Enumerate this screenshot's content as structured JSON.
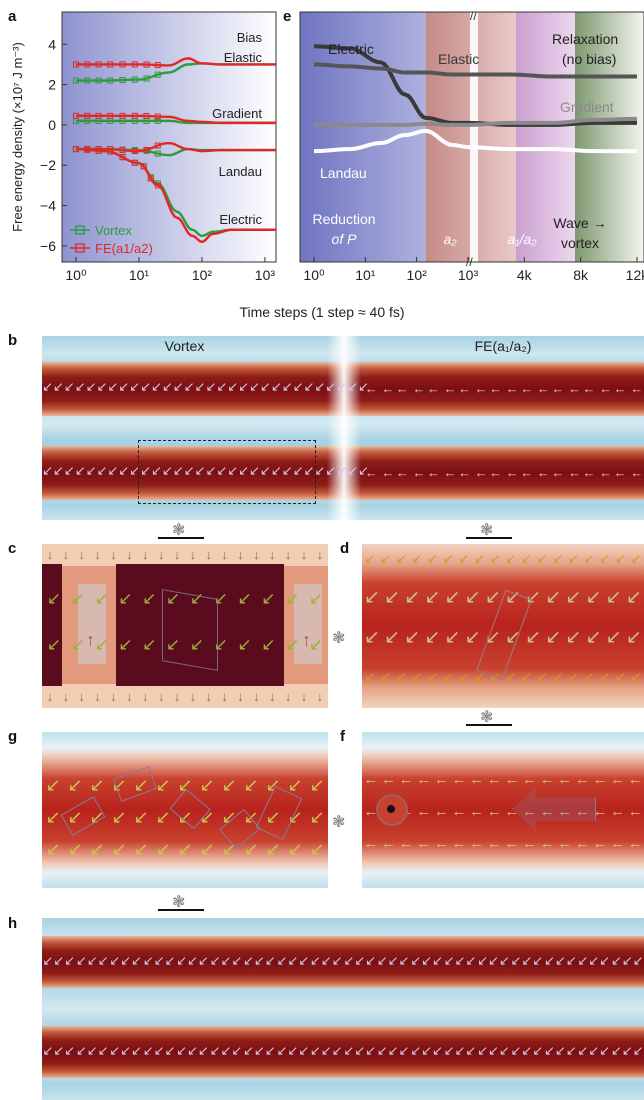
{
  "panel_labels": {
    "a": "a",
    "b": "b",
    "c": "c",
    "d": "d",
    "e": "e",
    "f": "f",
    "g": "g",
    "h": "h"
  },
  "axes": {
    "ylabel_a": "Free energy density (×10⁷ J m⁻³)",
    "xlabel_shared": "Time steps (1 step ≈ 40 fs)",
    "a_yticks": [
      "4",
      "2",
      "0",
      "−2",
      "−4",
      "−6"
    ],
    "a_xticks": [
      "10⁰",
      "10¹",
      "10²",
      "10³"
    ],
    "e_xticks": [
      "10⁰",
      "10¹",
      "10²",
      "10³",
      "4k",
      "8k",
      "12k"
    ]
  },
  "chart_data": [
    {
      "type": "line",
      "panel": "a",
      "xscale": "log",
      "xlim": [
        0.6,
        1500
      ],
      "ylim": [
        -6.8,
        5.6
      ],
      "annotations": [
        "Bias",
        "Elastic",
        "Gradient",
        "Landau",
        "Electric"
      ],
      "legend": [
        "Vortex",
        "FE(a1/a2)"
      ],
      "legend_placement": "bottom-left",
      "series": [
        {
          "name": "Vortex",
          "component": "Elastic",
          "color": "#2e9a3a",
          "x": [
            1,
            3,
            10,
            30,
            60,
            100,
            200,
            1000,
            1500
          ],
          "y": [
            2.2,
            2.2,
            2.25,
            2.6,
            3.0,
            3.05,
            3.0,
            3.0,
            3.0
          ]
        },
        {
          "name": "FE(a1/a2)",
          "component": "Elastic",
          "color": "#e02828",
          "x": [
            1,
            3,
            10,
            30,
            60,
            100,
            200,
            1000,
            1500
          ],
          "y": [
            3.0,
            3.0,
            3.0,
            2.95,
            3.3,
            3.05,
            3.0,
            3.0,
            3.0
          ]
        },
        {
          "name": "Vortex",
          "component": "Gradient",
          "color": "#2e9a3a",
          "x": [
            1,
            3,
            10,
            30,
            60,
            100,
            200,
            1000,
            1500
          ],
          "y": [
            0.2,
            0.2,
            0.2,
            0.2,
            0.1,
            0.1,
            0.1,
            0.1,
            0.1
          ]
        },
        {
          "name": "FE(a1/a2)",
          "component": "Gradient",
          "color": "#e02828",
          "x": [
            1,
            3,
            10,
            30,
            60,
            100,
            200,
            1000,
            1500
          ],
          "y": [
            0.45,
            0.45,
            0.45,
            0.4,
            0.2,
            0.15,
            0.1,
            0.1,
            0.1
          ]
        },
        {
          "name": "Vortex",
          "component": "Landau",
          "color": "#2e9a3a",
          "x": [
            1,
            3,
            10,
            30,
            60,
            100,
            200,
            1000,
            1500
          ],
          "y": [
            -1.2,
            -1.2,
            -1.25,
            -1.5,
            -1.2,
            -1.25,
            -1.25,
            -1.25,
            -1.25
          ]
        },
        {
          "name": "FE(a1/a2)",
          "component": "Landau",
          "color": "#e02828",
          "x": [
            1,
            3,
            10,
            30,
            60,
            100,
            200,
            1000,
            1500
          ],
          "y": [
            -1.2,
            -1.2,
            -1.3,
            -0.9,
            -1.2,
            -1.3,
            -1.25,
            -1.25,
            -1.25
          ]
        },
        {
          "name": "Vortex",
          "component": "Electric",
          "color": "#2e9a3a",
          "x": [
            1,
            3,
            10,
            20,
            40,
            70,
            100,
            150,
            300,
            1000,
            1500
          ],
          "y": [
            -1.2,
            -1.3,
            -1.9,
            -2.9,
            -4.3,
            -5.2,
            -5.5,
            -5.3,
            -5.2,
            -5.2,
            -5.2
          ]
        },
        {
          "name": "FE(a1/a2)",
          "component": "Electric",
          "color": "#e02828",
          "x": [
            1,
            3,
            10,
            20,
            40,
            70,
            100,
            150,
            300,
            1000,
            1500
          ],
          "y": [
            -1.2,
            -1.3,
            -1.9,
            -3.0,
            -4.6,
            -5.5,
            -5.8,
            -5.4,
            -5.2,
            -5.2,
            -5.2
          ]
        }
      ]
    },
    {
      "type": "line",
      "panel": "e",
      "stages": [
        {
          "label_lines": [
            "Reduction",
            "of P"
          ],
          "color": "#7a7fc6"
        },
        {
          "label_lines": [
            "a₂"
          ],
          "color": "#c98a86"
        },
        {
          "label_lines": [
            "a₁/a₂"
          ],
          "color": "#d6a7d8"
        },
        {
          "label_lines": [
            "Wave →",
            "vortex"
          ],
          "color": "#8ea47e"
        }
      ],
      "annotations": {
        "Electric": "Electric",
        "Elastic": "Elastic",
        "Relaxation": "Relaxation",
        "NoBias": "(no bias)",
        "Gradient": "Gradient",
        "Landau": "Landau"
      },
      "note": "x axis: log segment 1–1000 steps, then linear segment 1000–12000 steps (break marked //)",
      "series": [
        {
          "component": "Electric",
          "color": "#3a3a3a",
          "x": [
            1,
            5,
            20,
            60,
            150,
            500,
            1000,
            3000,
            6000,
            9000,
            12000
          ],
          "y": [
            3.9,
            3.8,
            3.1,
            1.5,
            0.35,
            0.1,
            0.1,
            0.0,
            0.0,
            0.1,
            0.1
          ]
        },
        {
          "component": "Elastic",
          "color": "#555555",
          "x": [
            1,
            5,
            20,
            60,
            150,
            500,
            1000,
            3000,
            6000,
            9000,
            12000
          ],
          "y": [
            3.0,
            2.9,
            2.8,
            2.6,
            2.6,
            2.5,
            2.5,
            2.5,
            2.4,
            2.4,
            2.4
          ]
        },
        {
          "component": "Gradient",
          "color": "#8a8a8a",
          "x": [
            1,
            5,
            20,
            60,
            150,
            500,
            1000,
            3000,
            6000,
            9000,
            12000
          ],
          "y": [
            0.0,
            0.0,
            0.0,
            0.0,
            0.05,
            0.0,
            0.0,
            0.1,
            0.1,
            0.25,
            0.3
          ]
        },
        {
          "component": "Landau",
          "color": "#ffffff",
          "x": [
            1,
            5,
            20,
            60,
            150,
            500,
            1000,
            3000,
            6000,
            9000,
            12000
          ],
          "y": [
            -1.3,
            -1.2,
            -0.9,
            -0.5,
            -0.3,
            -1.0,
            -1.1,
            -1.2,
            -1.2,
            -1.3,
            -1.3
          ]
        }
      ]
    }
  ],
  "panel_b": {
    "label_left": "Vortex",
    "label_right": "FE(a₁/a₂)"
  },
  "arrow_glyphs": {
    "down": "↓",
    "left": "←",
    "sw": "↙",
    "up": "↑",
    "lower": "↙",
    "dot": "◉",
    "mol": "❃"
  }
}
